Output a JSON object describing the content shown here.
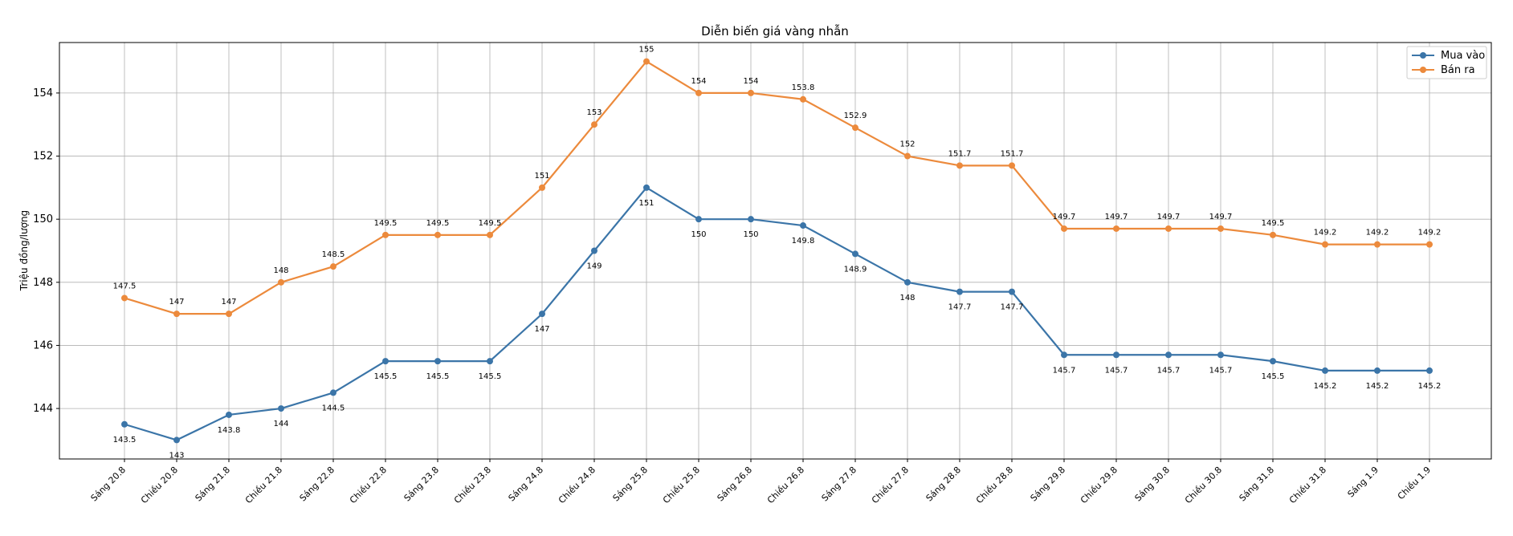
{
  "chart_data": {
    "type": "line",
    "title": "Diễn biến giá vàng nhẫn",
    "xlabel": "",
    "ylabel": "Triệu đồng/lượng",
    "ylim": [
      142.4,
      155.6
    ],
    "yticks": [
      144,
      146,
      148,
      150,
      152,
      154
    ],
    "grid": true,
    "legend_position": "top-right",
    "categories": [
      "Sáng 20.8",
      "Chiều 20.8",
      "Sáng 21.8",
      "Chiều 21.8",
      "Sáng 22.8",
      "Chiều 22.8",
      "Sáng 23.8",
      "Chiều 23.8",
      "Sáng 24.8",
      "Chiều 24.8",
      "Sáng 25.8",
      "Chiều 25.8",
      "Sáng 26.8",
      "Chiều 26.8",
      "Sáng 27.8",
      "Chiều 27.8",
      "Sáng 28.8",
      "Chiều 28.8",
      "Sáng 29.8",
      "Chiều 29.8",
      "Sáng 30.8",
      "Chiều 30.8",
      "Sáng 31.8",
      "Chiều 31.8",
      "Sáng 1.9",
      "Chiều 1.9"
    ],
    "series": [
      {
        "name": "Mua vào",
        "color": "#3b75a8",
        "label_position": "below",
        "values": [
          143.5,
          143,
          143.8,
          144,
          144.5,
          145.5,
          145.5,
          145.5,
          147,
          149,
          151,
          150,
          150,
          149.8,
          148.9,
          148,
          147.7,
          147.7,
          145.7,
          145.7,
          145.7,
          145.7,
          145.5,
          145.2,
          145.2,
          145.2
        ]
      },
      {
        "name": "Bán ra",
        "color": "#ec8a3c",
        "label_position": "above",
        "values": [
          147.5,
          147,
          147,
          148,
          148.5,
          149.5,
          149.5,
          149.5,
          151,
          153,
          155,
          154,
          154,
          153.8,
          152.9,
          152,
          151.7,
          151.7,
          149.7,
          149.7,
          149.7,
          149.7,
          149.5,
          149.2,
          149.2,
          149.2
        ]
      }
    ]
  }
}
